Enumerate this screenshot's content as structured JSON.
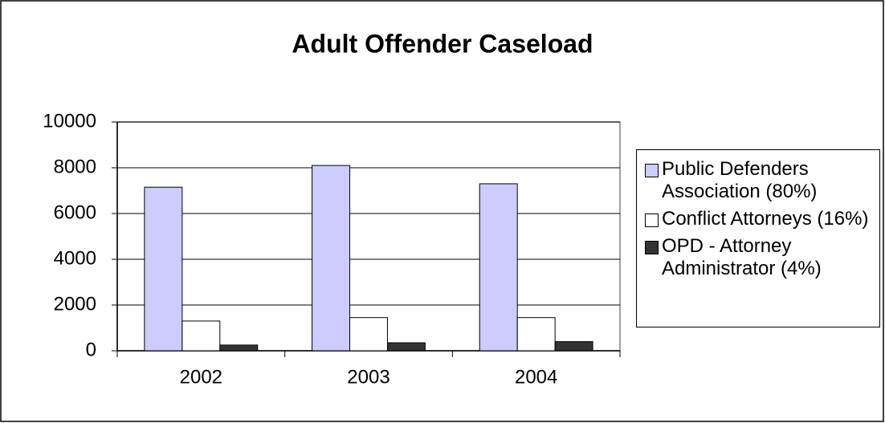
{
  "chart_data": {
    "type": "bar",
    "title": "Adult Offender Caseload",
    "categories": [
      "2002",
      "2003",
      "2004"
    ],
    "series": [
      {
        "name": "Public Defenders Association (80%)",
        "color": "#ccccff",
        "values": [
          7150,
          8100,
          7300
        ]
      },
      {
        "name": "Conflict Attorneys (16%)",
        "color": "#ffffff",
        "values": [
          1300,
          1450,
          1450
        ]
      },
      {
        "name": "OPD - Attorney Administrator (4%)",
        "color": "#333333",
        "values": [
          250,
          350,
          400
        ]
      }
    ],
    "ylim": [
      0,
      10000
    ],
    "yticks": [
      0,
      2000,
      4000,
      6000,
      8000,
      10000
    ],
    "grid": true,
    "legend": "right"
  }
}
